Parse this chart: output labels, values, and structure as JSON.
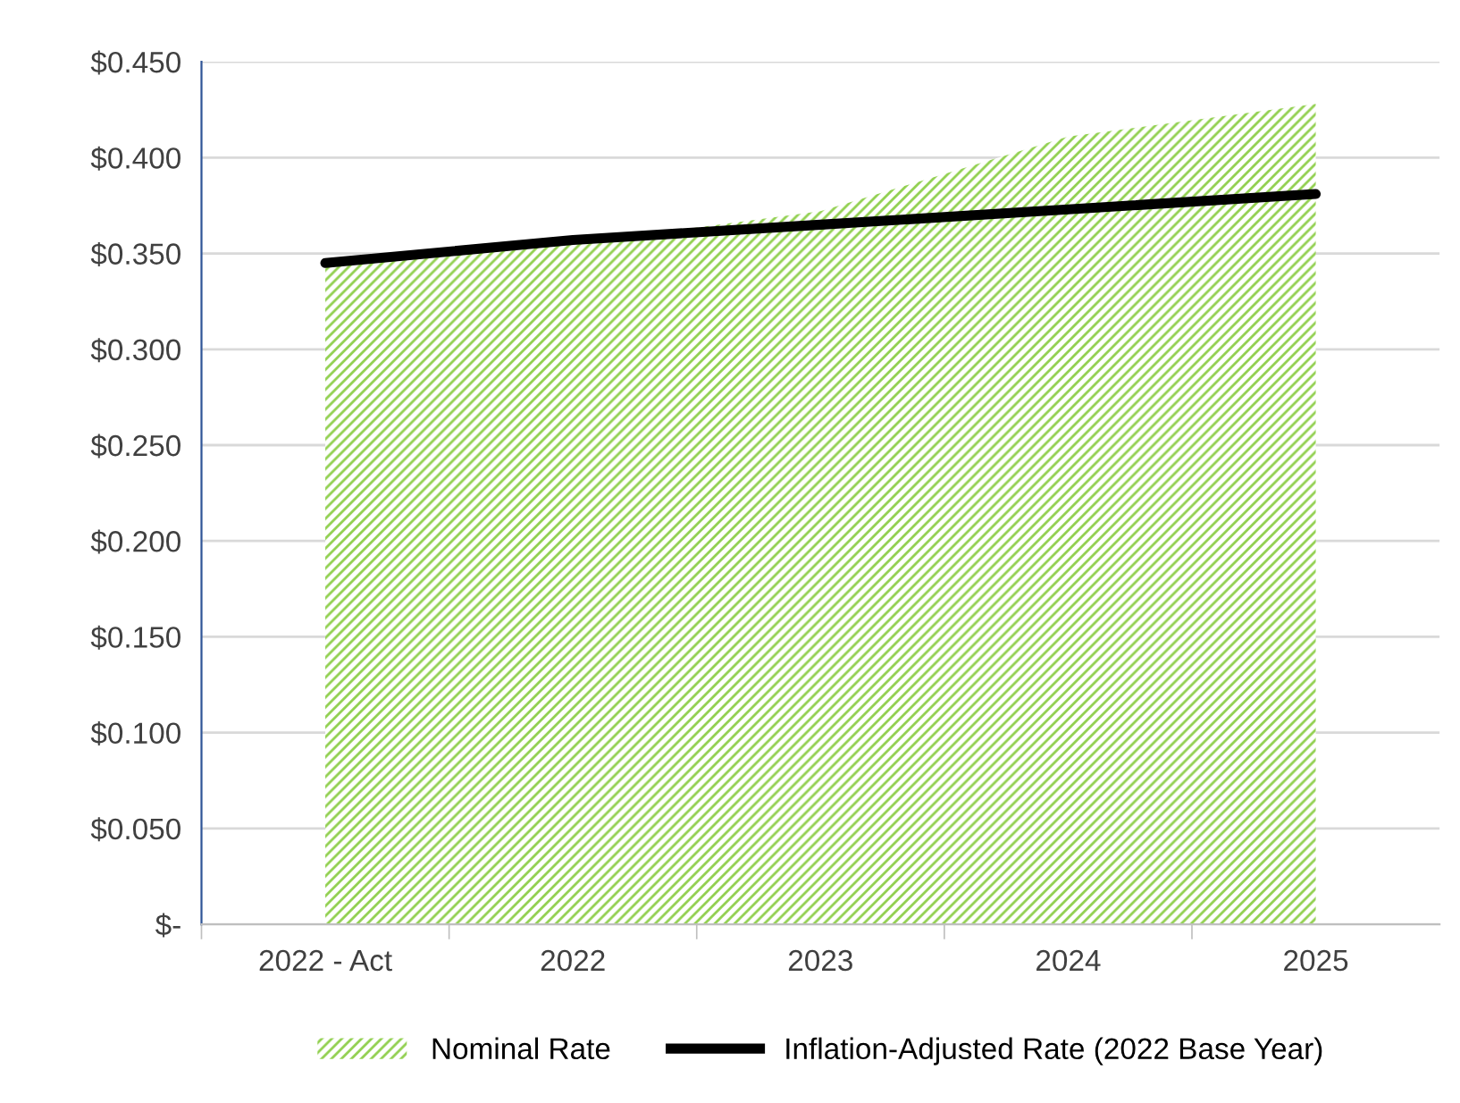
{
  "chart_data": {
    "type": "area",
    "categories": [
      "2022 - Act",
      "2022",
      "2023",
      "2024",
      "2025"
    ],
    "series": [
      {
        "name": "Nominal Rate",
        "color": "#92d050",
        "values": [
          0.345,
          0.355,
          0.372,
          0.411,
          0.428
        ]
      },
      {
        "name": "Inflation-Adjusted Rate (2022 Base Year)",
        "type": "line",
        "color": "#000000",
        "values": [
          0.345,
          0.357,
          0.365,
          0.373,
          0.381
        ]
      }
    ],
    "ylim": [
      0,
      0.45
    ],
    "yticks": [
      {
        "value": 0,
        "label": "$-"
      },
      {
        "value": 0.05,
        "label": "$0.050"
      },
      {
        "value": 0.1,
        "label": "$0.100"
      },
      {
        "value": 0.15,
        "label": "$0.150"
      },
      {
        "value": 0.2,
        "label": "$0.200"
      },
      {
        "value": 0.25,
        "label": "$0.250"
      },
      {
        "value": 0.3,
        "label": "$0.300"
      },
      {
        "value": 0.35,
        "label": "$0.350"
      },
      {
        "value": 0.4,
        "label": "$0.400"
      },
      {
        "value": 0.45,
        "label": "$0.450"
      }
    ],
    "grid": "y",
    "legend": "bottom"
  }
}
